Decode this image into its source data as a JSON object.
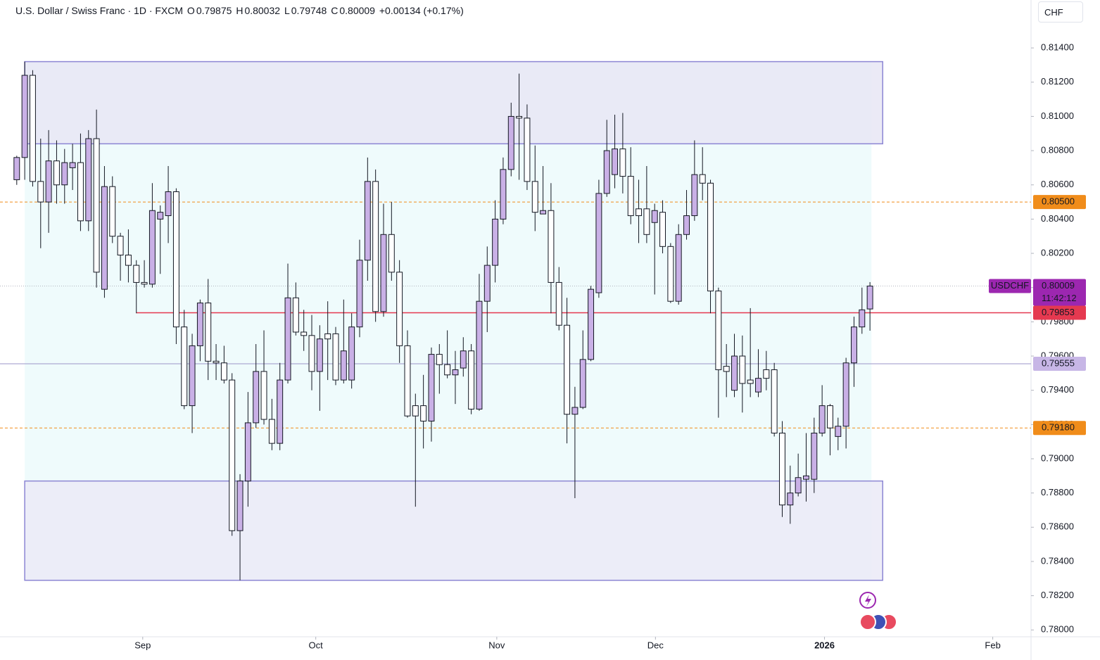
{
  "header": {
    "symbol": "U.S. Dollar / Swiss Franc · 1D · FXCM",
    "ohlc": [
      {
        "label": "O",
        "value": "0.79875"
      },
      {
        "label": "H",
        "value": "0.80032"
      },
      {
        "label": "L",
        "value": "0.79748"
      },
      {
        "label": "C",
        "value": "0.80009"
      }
    ],
    "change": "+0.00134 (+0.17%)",
    "currency": "CHF"
  },
  "chart_data": {
    "type": "candlestick",
    "x": [
      0,
      1,
      2,
      3,
      4,
      5,
      6,
      7,
      8,
      9,
      10,
      11,
      12,
      13,
      14,
      15,
      16,
      17,
      18,
      19,
      20,
      21,
      22,
      23,
      24,
      25,
      26,
      27,
      28,
      29,
      30,
      31,
      32,
      33,
      34,
      35,
      36,
      37,
      38,
      39,
      40,
      41,
      42,
      43,
      44,
      45,
      46,
      47,
      48,
      49,
      50,
      51,
      52,
      53,
      54,
      55,
      56,
      57,
      58,
      59,
      60,
      61,
      62,
      63,
      64,
      65,
      66,
      67,
      68,
      69,
      70,
      71,
      72,
      73,
      74,
      75,
      76,
      77,
      78,
      79,
      80,
      81,
      82,
      83,
      84,
      85,
      86,
      87,
      88,
      89,
      90,
      91,
      92,
      93,
      94,
      95,
      96,
      97,
      98,
      99,
      100,
      101,
      102,
      103,
      104,
      105,
      106,
      107
    ],
    "open": [
      0.8063,
      0.8076,
      0.8124,
      0.8062,
      0.805,
      0.8074,
      0.806,
      0.807,
      0.8073,
      0.8039,
      0.8087,
      0.7999,
      0.8059,
      0.803,
      0.8019,
      0.8013,
      0.8003,
      0.8002,
      0.804,
      0.8042,
      0.8056,
      0.7977,
      0.7931,
      0.7966,
      0.7991,
      0.7957,
      0.7956,
      0.7946,
      0.7858,
      0.7887,
      0.7921,
      0.7951,
      0.7923,
      0.7909,
      0.7946,
      0.7994,
      0.7974,
      0.7972,
      0.7951,
      0.7973,
      0.7973,
      0.7946,
      0.7946,
      0.7977,
      0.8016,
      0.8062,
      0.7986,
      0.8031,
      0.8009,
      0.7966,
      0.7931,
      0.7931,
      0.7922,
      0.7961,
      0.7955,
      0.7949,
      0.7953,
      0.7963,
      0.7929,
      0.7992,
      0.8013,
      0.804,
      0.8069,
      0.81,
      0.8099,
      0.8062,
      0.8043,
      0.8045,
      0.8003,
      0.7978,
      0.7926,
      0.793,
      0.7958,
      0.7997,
      0.8055,
      0.8066,
      0.8081,
      0.8065,
      0.8046,
      0.8046,
      0.8038,
      0.8044,
      0.8024,
      0.7992,
      0.8031,
      0.8042,
      0.8066,
      0.8061,
      0.7998,
      0.7954,
      0.794,
      0.796,
      0.7946,
      0.7939,
      0.7952,
      0.7952,
      0.7915,
      0.7873,
      0.788,
      0.7888,
      0.7888,
      0.7915,
      0.7931,
      0.7913,
      0.7919,
      0.7956,
      0.7977,
      0.79875
    ],
    "high": [
      0.8077,
      0.8132,
      0.8127,
      0.8087,
      0.8092,
      0.8086,
      0.8081,
      0.8084,
      0.809,
      0.8092,
      0.8104,
      0.8071,
      0.8065,
      0.8032,
      0.8034,
      0.8016,
      0.8016,
      0.8061,
      0.8048,
      0.8071,
      0.8058,
      0.7987,
      0.7973,
      0.7993,
      0.8005,
      0.7967,
      0.7966,
      0.795,
      0.7891,
      0.7939,
      0.7967,
      0.7975,
      0.7935,
      0.7956,
      0.8014,
      0.8003,
      0.7987,
      0.7984,
      0.7978,
      0.7992,
      0.7977,
      0.7993,
      0.7985,
      0.8028,
      0.8076,
      0.8069,
      0.8049,
      0.805,
      0.8016,
      0.7975,
      0.7938,
      0.7949,
      0.7965,
      0.7967,
      0.7975,
      0.7963,
      0.7971,
      0.7967,
      0.8008,
      0.8024,
      0.8051,
      0.8076,
      0.8108,
      0.8125,
      0.8107,
      0.8083,
      0.8071,
      0.8061,
      0.8012,
      0.7994,
      0.7942,
      0.7975,
      0.8001,
      0.8063,
      0.8098,
      0.8101,
      0.8102,
      0.8082,
      0.8063,
      0.8071,
      0.8049,
      0.8051,
      0.8026,
      0.8037,
      0.8057,
      0.8086,
      0.8082,
      0.8063,
      0.8,
      0.7967,
      0.7973,
      0.7972,
      0.7988,
      0.7964,
      0.7963,
      0.7956,
      0.7922,
      0.7896,
      0.7903,
      0.7915,
      0.7924,
      0.7943,
      0.7932,
      0.7924,
      0.7959,
      0.7983,
      0.8,
      0.80032
    ],
    "low": [
      0.806,
      0.8063,
      0.8059,
      0.8023,
      0.8032,
      0.8049,
      0.8049,
      0.8057,
      0.8033,
      0.8033,
      0.8,
      0.7994,
      0.8026,
      0.8004,
      0.8003,
      0.7985,
      0.8,
      0.8,
      0.8008,
      0.8026,
      0.7967,
      0.7929,
      0.7915,
      0.7957,
      0.7946,
      0.7946,
      0.7944,
      0.7855,
      0.7829,
      0.7872,
      0.7918,
      0.792,
      0.7905,
      0.7905,
      0.7944,
      0.7972,
      0.7963,
      0.794,
      0.7928,
      0.7946,
      0.7943,
      0.7944,
      0.7941,
      0.7971,
      0.8004,
      0.798,
      0.7983,
      0.8004,
      0.7956,
      0.7924,
      0.7872,
      0.7906,
      0.791,
      0.7938,
      0.7947,
      0.7932,
      0.7948,
      0.7926,
      0.7928,
      0.7974,
      0.8003,
      0.8037,
      0.8065,
      0.8063,
      0.8057,
      0.8033,
      0.8043,
      0.7985,
      0.7975,
      0.7909,
      0.7877,
      0.7929,
      0.7957,
      0.7994,
      0.8053,
      0.8058,
      0.8055,
      0.8037,
      0.8026,
      0.8026,
      0.7996,
      0.802,
      0.7991,
      0.799,
      0.8028,
      0.8039,
      0.8051,
      0.7985,
      0.7924,
      0.7936,
      0.7936,
      0.7927,
      0.7936,
      0.7936,
      0.794,
      0.7913,
      0.7866,
      0.7862,
      0.7878,
      0.7875,
      0.788,
      0.7913,
      0.7902,
      0.7905,
      0.7906,
      0.7942,
      0.7973,
      0.79748
    ],
    "close": [
      0.8076,
      0.8124,
      0.8062,
      0.805,
      0.8074,
      0.806,
      0.8073,
      0.8073,
      0.8039,
      0.8087,
      0.8009,
      0.8059,
      0.803,
      0.8019,
      0.8013,
      0.8003,
      0.8002,
      0.8045,
      0.8044,
      0.8056,
      0.7977,
      0.7931,
      0.7966,
      0.7991,
      0.7957,
      0.7956,
      0.7946,
      0.7858,
      0.7887,
      0.7921,
      0.7951,
      0.7923,
      0.7909,
      0.7946,
      0.7994,
      0.7974,
      0.7972,
      0.7951,
      0.797,
      0.797,
      0.7946,
      0.7963,
      0.7977,
      0.8016,
      0.8062,
      0.7986,
      0.8031,
      0.8009,
      0.7966,
      0.7925,
      0.7925,
      0.7922,
      0.7961,
      0.7955,
      0.7949,
      0.7952,
      0.7963,
      0.7929,
      0.7992,
      0.8013,
      0.804,
      0.8069,
      0.81,
      0.8099,
      0.8062,
      0.8044,
      0.8045,
      0.8003,
      0.7978,
      0.7926,
      0.793,
      0.7958,
      0.7999,
      0.8055,
      0.808,
      0.8081,
      0.8065,
      0.8042,
      0.8042,
      0.8031,
      0.8045,
      0.8024,
      0.7992,
      0.8031,
      0.8042,
      0.8066,
      0.8061,
      0.7998,
      0.7952,
      0.7951,
      0.796,
      0.7944,
      0.7944,
      0.7947,
      0.7947,
      0.7915,
      0.7873,
      0.788,
      0.7889,
      0.789,
      0.7915,
      0.7931,
      0.7918,
      0.7919,
      0.7956,
      0.7977,
      0.7987,
      0.80009
    ],
    "up_color": "#c9b0e6",
    "down_color": "#ffffff",
    "outline_color": "#131722",
    "xlim": [
      -2.1,
      127.2
    ],
    "xticks": [
      {
        "value": 15.8,
        "label": "Sep"
      },
      {
        "value": 37.5,
        "label": "Oct"
      },
      {
        "value": 60.2,
        "label": "Nov"
      },
      {
        "value": 80.1,
        "label": "Dec"
      },
      {
        "value": 101.3,
        "label": "2026"
      },
      {
        "value": 122.4,
        "label": "Feb"
      }
    ],
    "ylim": [
      0.7796,
      0.8168
    ],
    "yticks": [
      {
        "value": 0.78,
        "label": "0.78000"
      },
      {
        "value": 0.782,
        "label": "0.78200"
      },
      {
        "value": 0.784,
        "label": "0.78400"
      },
      {
        "value": 0.786,
        "label": "0.78600"
      },
      {
        "value": 0.788,
        "label": "0.78800"
      },
      {
        "value": 0.79,
        "label": "0.79000"
      },
      {
        "value": 0.792,
        "label": "0.79200"
      },
      {
        "value": 0.794,
        "label": "0.79400"
      },
      {
        "value": 0.796,
        "label": "0.79600"
      },
      {
        "value": 0.798,
        "label": "0.79800"
      },
      {
        "value": 0.8,
        "label": "0.80000"
      },
      {
        "value": 0.802,
        "label": "0.80200"
      },
      {
        "value": 0.804,
        "label": "0.80400"
      },
      {
        "value": 0.806,
        "label": "0.80600"
      },
      {
        "value": 0.808,
        "label": "0.80800"
      },
      {
        "value": 0.81,
        "label": "0.81000"
      },
      {
        "value": 0.812,
        "label": "0.81200"
      },
      {
        "value": 0.814,
        "label": "0.81400"
      }
    ],
    "zones": [
      {
        "x0": 1,
        "x1": 108.6,
        "y0": 0.8084,
        "y1": 0.8132,
        "color": "#e7e6f5",
        "stroke": "#8c86d4"
      },
      {
        "x0": 1,
        "x1": 108.6,
        "y0": 0.7829,
        "y1": 0.7887,
        "color": "#ebeaf7",
        "stroke": "#8c86d4"
      }
    ],
    "lines": [
      {
        "value": 0.805,
        "label": "0.80500",
        "color": "#f08c1a",
        "style": "dashed",
        "text_color": "#ffffff"
      },
      {
        "value": 0.7918,
        "label": "0.79180",
        "color": "#f08c1a",
        "style": "dashed",
        "text_color": "#ffffff"
      },
      {
        "value": 0.79853,
        "label": "0.79853",
        "color": "#e53950",
        "style": "solid",
        "x_start": 15,
        "text_color": "#ffffff"
      },
      {
        "value": 0.79555,
        "label": "0.79555",
        "color": "#9b95c9",
        "style": "thin",
        "text_color": "#131722",
        "label_color": "#c7b6e6"
      }
    ],
    "last_price": {
      "symbol": "USDCHF",
      "value": 0.80009,
      "label": "0.80009",
      "countdown": "11:42:12",
      "color": "#9c27b0"
    }
  }
}
